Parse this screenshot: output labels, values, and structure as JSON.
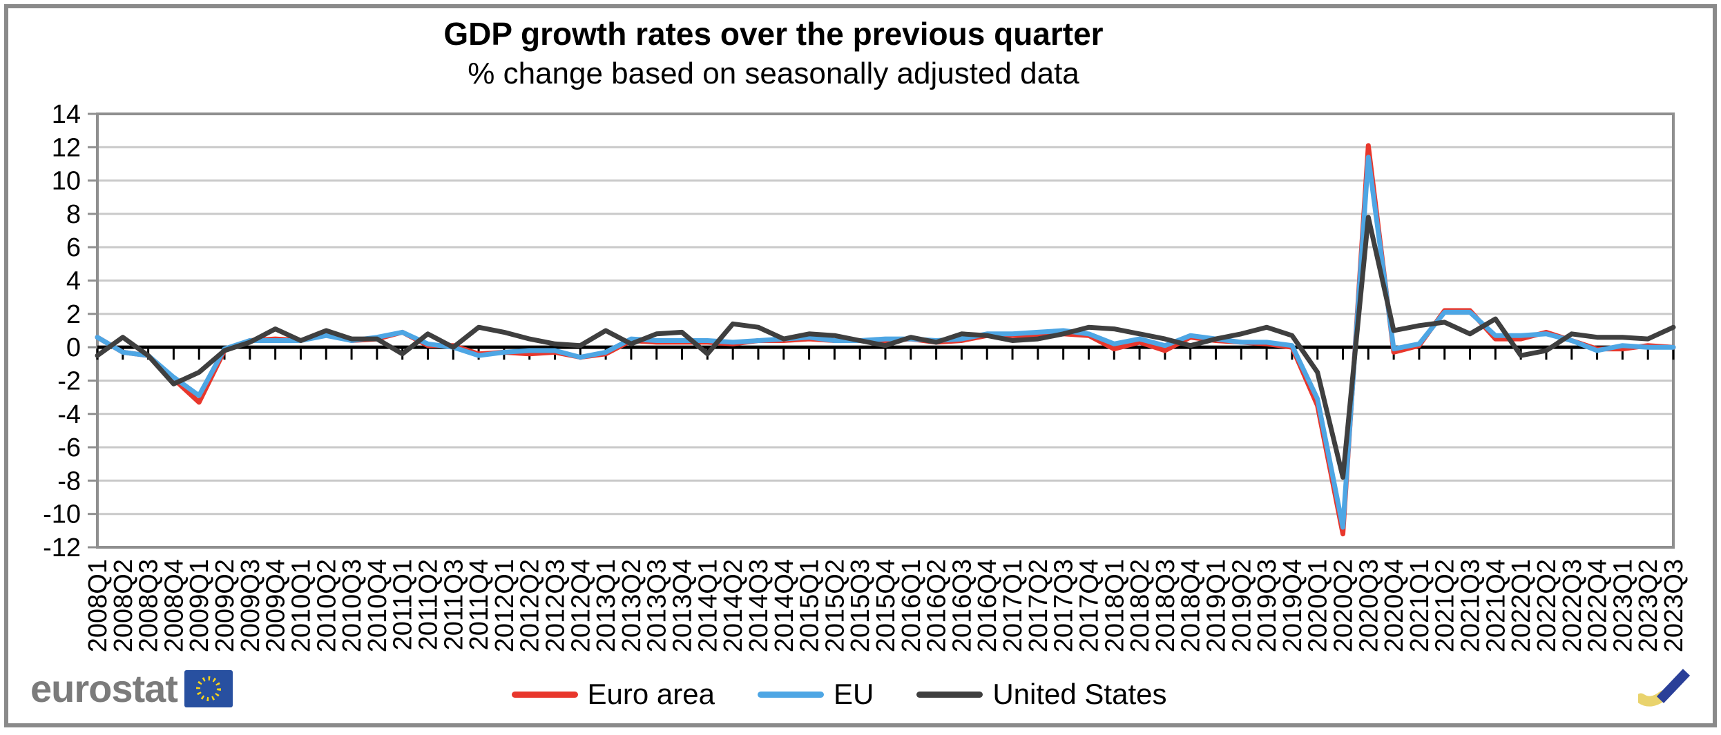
{
  "window": {
    "background": "#ffffff",
    "frame_color": "#8a8a8a"
  },
  "header": {
    "title": "GDP growth rates over the previous quarter",
    "subtitle": "% change based on seasonally adjusted data"
  },
  "branding": {
    "logo_text": "eurostat",
    "flag_color": "#2850a0",
    "star_color": "#ffd617"
  },
  "corner_icon": {
    "blue": "#2a3f98",
    "yellow": "#e9d36d"
  },
  "chart_data": {
    "type": "line",
    "title": "GDP growth rates over the previous quarter",
    "subtitle": "% change based on seasonally adjusted data",
    "xlabel": "",
    "ylabel": "",
    "ylim": [
      -12,
      14
    ],
    "ytick_step": 2,
    "grid": true,
    "legend_position": "bottom",
    "axis_colors": {
      "gridline": "#c9c9c9",
      "border": "#8f8f8f",
      "zero_line": "#000000"
    },
    "categories": [
      "2008Q1",
      "2008Q2",
      "2008Q3",
      "2008Q4",
      "2009Q1",
      "2009Q2",
      "2009Q3",
      "2009Q4",
      "2010Q1",
      "2010Q2",
      "2010Q3",
      "2010Q4",
      "2011Q1",
      "2011Q2",
      "2011Q3",
      "2011Q4",
      "2012Q1",
      "2012Q2",
      "2012Q3",
      "2012Q4",
      "2013Q1",
      "2013Q2",
      "2013Q3",
      "2013Q4",
      "2014Q1",
      "2014Q2",
      "2014Q3",
      "2014Q4",
      "2015Q1",
      "2015Q2",
      "2015Q3",
      "2015Q4",
      "2016Q1",
      "2016Q2",
      "2016Q3",
      "2016Q4",
      "2017Q1",
      "2017Q2",
      "2017Q3",
      "2017Q4",
      "2018Q1",
      "2018Q2",
      "2018Q3",
      "2018Q4",
      "2019Q1",
      "2019Q2",
      "2019Q3",
      "2019Q4",
      "2020Q1",
      "2020Q2",
      "2020Q3",
      "2020Q4",
      "2021Q1",
      "2021Q2",
      "2021Q3",
      "2021Q4",
      "2022Q1",
      "2022Q2",
      "2022Q3",
      "2022Q4",
      "2023Q1",
      "2023Q2",
      "2023Q3"
    ],
    "series": [
      {
        "name": "Euro area",
        "color": "#e8372c",
        "values": [
          0.6,
          -0.3,
          -0.5,
          -1.9,
          -3.3,
          -0.2,
          0.4,
          0.5,
          0.4,
          0.8,
          0.4,
          0.5,
          0.9,
          0.1,
          0.1,
          -0.4,
          -0.3,
          -0.4,
          -0.3,
          -0.6,
          -0.4,
          0.4,
          0.3,
          0.3,
          0.3,
          0.2,
          0.4,
          0.4,
          0.5,
          0.4,
          0.4,
          0.4,
          0.5,
          0.3,
          0.4,
          0.7,
          0.7,
          0.7,
          0.8,
          0.7,
          -0.1,
          0.3,
          -0.2,
          0.6,
          0.4,
          0.3,
          0.2,
          0.0,
          -3.5,
          -11.2,
          12.1,
          -0.3,
          0.1,
          2.2,
          2.2,
          0.5,
          0.5,
          0.9,
          0.4,
          -0.1,
          -0.1,
          0.1,
          0.0
        ]
      },
      {
        "name": "EU",
        "color": "#4ea6e4",
        "values": [
          0.6,
          -0.3,
          -0.5,
          -1.8,
          -2.9,
          -0.1,
          0.4,
          0.4,
          0.4,
          0.7,
          0.4,
          0.6,
          0.9,
          0.2,
          0.0,
          -0.5,
          -0.3,
          -0.2,
          -0.2,
          -0.6,
          -0.3,
          0.5,
          0.4,
          0.4,
          0.4,
          0.3,
          0.4,
          0.5,
          0.6,
          0.4,
          0.4,
          0.5,
          0.5,
          0.4,
          0.5,
          0.8,
          0.8,
          0.9,
          1.0,
          0.8,
          0.2,
          0.5,
          0.1,
          0.7,
          0.5,
          0.3,
          0.3,
          0.1,
          -3.1,
          -10.8,
          11.4,
          -0.1,
          0.2,
          2.1,
          2.1,
          0.7,
          0.7,
          0.8,
          0.4,
          -0.2,
          0.1,
          0.0,
          0.0
        ]
      },
      {
        "name": "United States",
        "color": "#3f3f3f",
        "values": [
          -0.5,
          0.6,
          -0.5,
          -2.2,
          -1.5,
          -0.2,
          0.3,
          1.1,
          0.4,
          1.0,
          0.5,
          0.5,
          -0.4,
          0.8,
          0.0,
          1.2,
          0.9,
          0.5,
          0.2,
          0.1,
          1.0,
          0.2,
          0.8,
          0.9,
          -0.4,
          1.4,
          1.2,
          0.5,
          0.8,
          0.7,
          0.4,
          0.1,
          0.6,
          0.3,
          0.8,
          0.7,
          0.4,
          0.5,
          0.8,
          1.2,
          1.1,
          0.8,
          0.5,
          0.1,
          0.5,
          0.8,
          1.2,
          0.7,
          -1.5,
          -7.8,
          7.8,
          1.0,
          1.3,
          1.5,
          0.8,
          1.7,
          -0.5,
          -0.2,
          0.8,
          0.6,
          0.6,
          0.5,
          1.2
        ]
      }
    ]
  }
}
